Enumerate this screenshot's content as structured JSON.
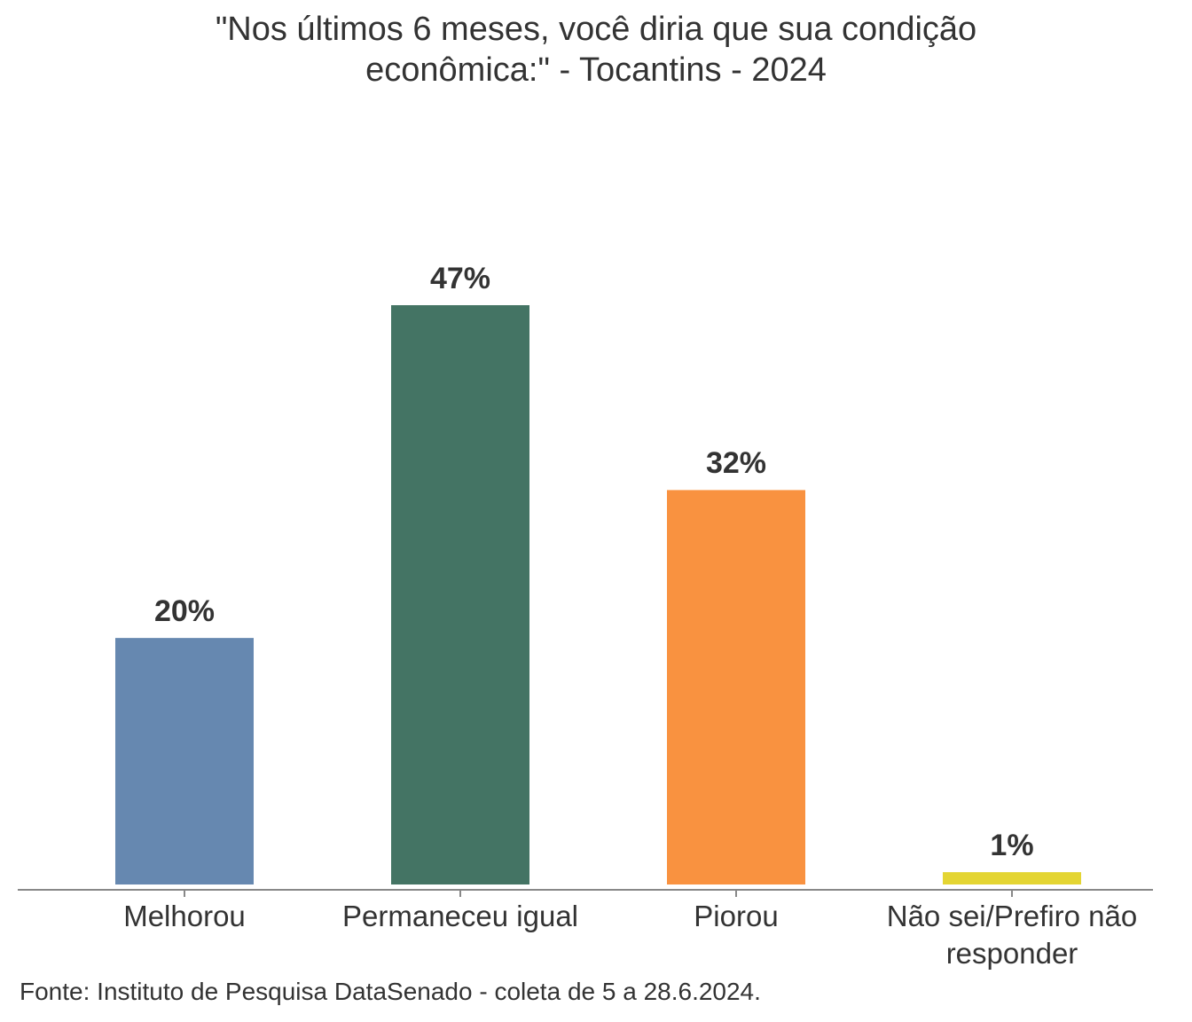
{
  "chart_data": {
    "type": "bar",
    "title": "\"Nos últimos 6 meses, você diria que sua condição econômica:\" - Tocantins - 2024",
    "categories": [
      "Melhorou",
      "Permaneceu igual",
      "Piorou",
      "Não sei/Prefiro não responder"
    ],
    "values": [
      20,
      47,
      32,
      1
    ],
    "value_labels": [
      "20%",
      "47%",
      "32%",
      "1%"
    ],
    "colors": [
      "#6688b0",
      "#447464",
      "#f99240",
      "#e4d533"
    ],
    "source": "Fonte: Instituto de Pesquisa DataSenado - coleta de 5 a 28.6.2024."
  }
}
